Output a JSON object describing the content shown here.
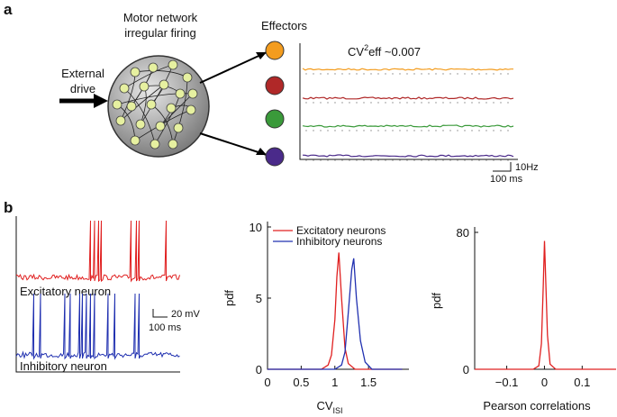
{
  "panels": {
    "a": "a",
    "b": "b"
  },
  "diagram": {
    "network_label": [
      "Motor network",
      "irregular firing"
    ],
    "drive_label": [
      "External",
      "drive"
    ],
    "effectors_label": "Effectors",
    "cv_label": {
      "base": "CV",
      "sup": "2",
      "rest": "eff ~0.007"
    },
    "scale_a": {
      "vertical": "10Hz",
      "horizontal": "100 ms"
    },
    "scale_b": {
      "vertical": "20 mV",
      "horizontal": "100 ms"
    },
    "trace_labels": [
      "Excitatory neuron",
      "Inhibitory neuron"
    ]
  },
  "chart_data": [
    {
      "type": "line",
      "ylabel": "pdf",
      "xlabel": {
        "base": "CV",
        "sub": "ISI"
      },
      "xlim": [
        0,
        2.1
      ],
      "xticks": [
        0,
        0.5,
        1,
        1.5
      ],
      "ylim": [
        0,
        10
      ],
      "yticks": [
        0,
        5,
        10
      ],
      "legend": "upper left",
      "series": [
        {
          "name": "Excitatory neurons",
          "color": "#e02020",
          "x": [
            0,
            0.8,
            0.9,
            0.95,
            1.0,
            1.03,
            1.06,
            1.1,
            1.15,
            1.2,
            1.3,
            2.0
          ],
          "values": [
            0,
            0,
            0.3,
            1.0,
            3.5,
            6.5,
            8.2,
            5,
            1.5,
            0.4,
            0,
            0
          ]
        },
        {
          "name": "Inhibitory neurons",
          "color": "#2030b0",
          "x": [
            0,
            1.0,
            1.1,
            1.15,
            1.2,
            1.25,
            1.28,
            1.32,
            1.38,
            1.45,
            1.55,
            2.0
          ],
          "values": [
            0,
            0,
            0.3,
            1.2,
            4,
            7,
            7.8,
            5,
            2,
            0.5,
            0,
            0
          ]
        }
      ]
    },
    {
      "type": "line",
      "ylabel": "pdf",
      "xlabel": "Pearson correlations",
      "xlim": [
        -0.185,
        0.19
      ],
      "xticks": [
        {
          "value": -0.1,
          "label": "−0.1"
        },
        0,
        0.1
      ],
      "ylim": [
        0,
        80
      ],
      "yticks": [
        0,
        80
      ],
      "series": [
        {
          "color": "#e02020",
          "x": [
            -0.185,
            -0.03,
            -0.015,
            -0.008,
            -0.003,
            0,
            0.003,
            0.008,
            0.015,
            0.03,
            0.19
          ],
          "values": [
            0,
            0,
            2,
            15,
            50,
            75,
            55,
            20,
            3,
            0,
            0
          ]
        }
      ]
    }
  ]
}
